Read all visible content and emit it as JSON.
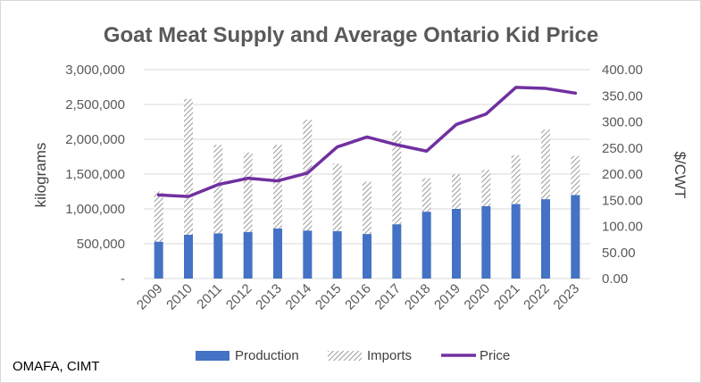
{
  "chart_data": {
    "type": "bar",
    "title": "Goat Meat Supply and Average Ontario Kid Price",
    "ylabel": "kilograms",
    "y2label": "$/CWT",
    "categories": [
      "2009",
      "2010",
      "2011",
      "2012",
      "2013",
      "2014",
      "2015",
      "2016",
      "2017",
      "2018",
      "2019",
      "2020",
      "2021",
      "2022",
      "2023"
    ],
    "ylim": [
      0,
      3000000
    ],
    "y2lim": [
      0,
      400
    ],
    "y_ticks": [
      "-",
      "500,000",
      "1,000,000",
      "1,500,000",
      "2,000,000",
      "2,500,000",
      "3,000,000"
    ],
    "y2_ticks": [
      "0.00",
      "50.00",
      "100.00",
      "150.00",
      "200.00",
      "250.00",
      "300.00",
      "350.00",
      "400.00"
    ],
    "series": [
      {
        "name": "Production",
        "kind": "stacked-bar",
        "color": "#4472c4",
        "values": [
          530000,
          630000,
          650000,
          670000,
          720000,
          690000,
          680000,
          640000,
          780000,
          960000,
          1000000,
          1040000,
          1070000,
          1140000,
          1200000
        ]
      },
      {
        "name": "Imports",
        "kind": "stacked-bar",
        "pattern": "hatched-gray",
        "values": [
          720000,
          1950000,
          1270000,
          1140000,
          1200000,
          1590000,
          970000,
          750000,
          1340000,
          480000,
          500000,
          520000,
          700000,
          1000000,
          560000
        ]
      },
      {
        "name": "Price",
        "kind": "line",
        "axis": "secondary",
        "color": "#7030a0",
        "values": [
          160,
          157,
          180,
          192,
          187,
          202,
          252,
          271,
          256,
          244,
          295,
          315,
          366,
          364,
          355
        ]
      }
    ],
    "legend_position": "bottom",
    "grid": true
  },
  "source_note": "OMAFA, CIMT"
}
